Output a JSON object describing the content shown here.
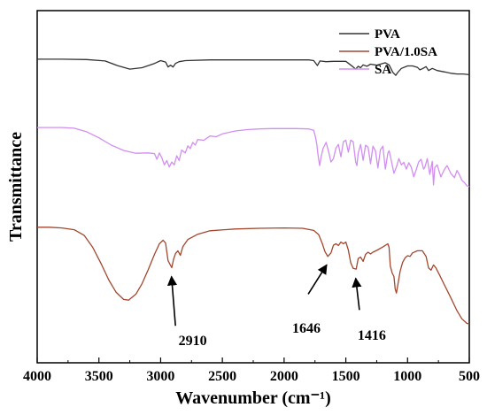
{
  "chart_data": {
    "type": "line",
    "title": "",
    "xlabel": "Wavenumber (cm⁻¹)",
    "ylabel": "Transmittance",
    "xlim": [
      4000,
      500
    ],
    "x_reversed": true,
    "xticks": [
      4000,
      3500,
      3000,
      2500,
      2000,
      1500,
      1000,
      500
    ],
    "ylim": [
      0,
      100
    ],
    "y_ticks_shown": false,
    "grid": false,
    "legend_position": "top-right",
    "series": [
      {
        "name": "PVA",
        "color": "#333333",
        "points": [
          [
            4000,
            86.2
          ],
          [
            3800,
            86.2
          ],
          [
            3600,
            86.1
          ],
          [
            3450,
            85.7
          ],
          [
            3350,
            84.4
          ],
          [
            3250,
            83.4
          ],
          [
            3150,
            83.8
          ],
          [
            3050,
            85.0
          ],
          [
            3000,
            85.8
          ],
          [
            2960,
            85.4
          ],
          [
            2940,
            84.0
          ],
          [
            2920,
            84.5
          ],
          [
            2900,
            84.0
          ],
          [
            2880,
            85.0
          ],
          [
            2850,
            85.5
          ],
          [
            2800,
            85.8
          ],
          [
            2600,
            86.0
          ],
          [
            2400,
            86.0
          ],
          [
            2200,
            86.0
          ],
          [
            2000,
            86.0
          ],
          [
            1800,
            86.0
          ],
          [
            1760,
            85.8
          ],
          [
            1730,
            84.4
          ],
          [
            1710,
            85.7
          ],
          [
            1660,
            85.5
          ],
          [
            1600,
            85.6
          ],
          [
            1500,
            85.6
          ],
          [
            1440,
            84.0
          ],
          [
            1420,
            83.4
          ],
          [
            1400,
            84.2
          ],
          [
            1380,
            83.8
          ],
          [
            1360,
            84.6
          ],
          [
            1330,
            84.2
          ],
          [
            1300,
            84.8
          ],
          [
            1250,
            84.5
          ],
          [
            1180,
            85.2
          ],
          [
            1150,
            84.6
          ],
          [
            1120,
            82.5
          ],
          [
            1095,
            81.6
          ],
          [
            1080,
            82.4
          ],
          [
            1050,
            83.6
          ],
          [
            1000,
            84.3
          ],
          [
            960,
            84.3
          ],
          [
            920,
            83.9
          ],
          [
            900,
            83.2
          ],
          [
            880,
            83.5
          ],
          [
            850,
            84.1
          ],
          [
            830,
            83.0
          ],
          [
            800,
            83.6
          ],
          [
            760,
            83.0
          ],
          [
            700,
            82.6
          ],
          [
            650,
            82.2
          ],
          [
            600,
            82.0
          ],
          [
            550,
            82.0
          ],
          [
            500,
            81.8
          ]
        ]
      },
      {
        "name": "PVA/1.0SA",
        "color": "#a3462e",
        "points": [
          [
            4000,
            38.5
          ],
          [
            3900,
            38.5
          ],
          [
            3800,
            38.3
          ],
          [
            3700,
            37.8
          ],
          [
            3620,
            36.2
          ],
          [
            3550,
            32.8
          ],
          [
            3480,
            28.0
          ],
          [
            3420,
            23.5
          ],
          [
            3360,
            20.0
          ],
          [
            3300,
            18.0
          ],
          [
            3260,
            17.8
          ],
          [
            3200,
            19.5
          ],
          [
            3150,
            22.5
          ],
          [
            3100,
            26.5
          ],
          [
            3050,
            30.8
          ],
          [
            3010,
            33.8
          ],
          [
            2980,
            34.8
          ],
          [
            2960,
            34.0
          ],
          [
            2940,
            29.0
          ],
          [
            2925,
            28.0
          ],
          [
            2910,
            27.0
          ],
          [
            2895,
            29.5
          ],
          [
            2880,
            31.0
          ],
          [
            2860,
            31.8
          ],
          [
            2840,
            30.5
          ],
          [
            2820,
            33.0
          ],
          [
            2780,
            35.0
          ],
          [
            2700,
            36.5
          ],
          [
            2600,
            37.5
          ],
          [
            2400,
            38.0
          ],
          [
            2200,
            38.2
          ],
          [
            2000,
            38.3
          ],
          [
            1850,
            38.2
          ],
          [
            1760,
            37.6
          ],
          [
            1720,
            36.4
          ],
          [
            1690,
            33.8
          ],
          [
            1670,
            31.6
          ],
          [
            1646,
            30.2
          ],
          [
            1620,
            31.2
          ],
          [
            1600,
            33.4
          ],
          [
            1580,
            33.8
          ],
          [
            1560,
            33.3
          ],
          [
            1540,
            34.3
          ],
          [
            1520,
            33.8
          ],
          [
            1500,
            34.3
          ],
          [
            1480,
            32.0
          ],
          [
            1460,
            28.4
          ],
          [
            1440,
            26.8
          ],
          [
            1416,
            26.6
          ],
          [
            1400,
            29.6
          ],
          [
            1380,
            30.0
          ],
          [
            1360,
            28.8
          ],
          [
            1340,
            30.8
          ],
          [
            1320,
            31.4
          ],
          [
            1300,
            30.9
          ],
          [
            1280,
            31.4
          ],
          [
            1250,
            31.9
          ],
          [
            1200,
            32.9
          ],
          [
            1160,
            33.8
          ],
          [
            1150,
            32.8
          ],
          [
            1140,
            27.5
          ],
          [
            1125,
            25.5
          ],
          [
            1110,
            24.5
          ],
          [
            1100,
            21.0
          ],
          [
            1090,
            19.8
          ],
          [
            1080,
            21.8
          ],
          [
            1060,
            26.0
          ],
          [
            1040,
            28.5
          ],
          [
            1020,
            29.8
          ],
          [
            1000,
            30.4
          ],
          [
            980,
            30.2
          ],
          [
            960,
            31.2
          ],
          [
            920,
            31.8
          ],
          [
            880,
            31.8
          ],
          [
            850,
            30.2
          ],
          [
            830,
            26.9
          ],
          [
            810,
            26.3
          ],
          [
            790,
            27.8
          ],
          [
            770,
            26.9
          ],
          [
            740,
            24.9
          ],
          [
            700,
            22.0
          ],
          [
            650,
            18.5
          ],
          [
            600,
            14.8
          ],
          [
            560,
            12.5
          ],
          [
            520,
            11.2
          ],
          [
            500,
            11.0
          ]
        ]
      },
      {
        "name": "SA",
        "color": "#d28ef0",
        "points": [
          [
            4000,
            66.8
          ],
          [
            3800,
            66.8
          ],
          [
            3700,
            66.6
          ],
          [
            3600,
            65.6
          ],
          [
            3500,
            63.9
          ],
          [
            3400,
            61.8
          ],
          [
            3300,
            60.3
          ],
          [
            3200,
            59.5
          ],
          [
            3100,
            59.6
          ],
          [
            3050,
            59.4
          ],
          [
            3030,
            57.8
          ],
          [
            3010,
            59.6
          ],
          [
            2990,
            58.2
          ],
          [
            2970,
            56.2
          ],
          [
            2950,
            57.4
          ],
          [
            2930,
            55.6
          ],
          [
            2910,
            57.0
          ],
          [
            2890,
            56.2
          ],
          [
            2870,
            58.8
          ],
          [
            2850,
            57.4
          ],
          [
            2830,
            60.4
          ],
          [
            2800,
            59.6
          ],
          [
            2780,
            61.6
          ],
          [
            2760,
            60.8
          ],
          [
            2740,
            62.6
          ],
          [
            2720,
            61.8
          ],
          [
            2700,
            63.4
          ],
          [
            2650,
            63.2
          ],
          [
            2600,
            64.4
          ],
          [
            2550,
            64.2
          ],
          [
            2500,
            65.0
          ],
          [
            2400,
            65.8
          ],
          [
            2300,
            66.2
          ],
          [
            2200,
            66.4
          ],
          [
            2100,
            66.5
          ],
          [
            2000,
            66.5
          ],
          [
            1900,
            66.5
          ],
          [
            1800,
            66.4
          ],
          [
            1760,
            66.0
          ],
          [
            1745,
            64.0
          ],
          [
            1735,
            62.0
          ],
          [
            1725,
            59.0
          ],
          [
            1712,
            56.0
          ],
          [
            1700,
            58.5
          ],
          [
            1685,
            60.8
          ],
          [
            1660,
            62.6
          ],
          [
            1640,
            60.0
          ],
          [
            1620,
            57.0
          ],
          [
            1600,
            58.0
          ],
          [
            1580,
            61.0
          ],
          [
            1560,
            62.0
          ],
          [
            1540,
            58.5
          ],
          [
            1520,
            62.8
          ],
          [
            1500,
            63.2
          ],
          [
            1480,
            59.8
          ],
          [
            1460,
            63.2
          ],
          [
            1440,
            62.8
          ],
          [
            1420,
            57.0
          ],
          [
            1410,
            56.0
          ],
          [
            1400,
            59.5
          ],
          [
            1380,
            62.0
          ],
          [
            1360,
            57.5
          ],
          [
            1340,
            61.8
          ],
          [
            1320,
            61.2
          ],
          [
            1300,
            56.5
          ],
          [
            1280,
            61.5
          ],
          [
            1260,
            60.2
          ],
          [
            1240,
            55.3
          ],
          [
            1220,
            60.5
          ],
          [
            1200,
            61.5
          ],
          [
            1180,
            55.0
          ],
          [
            1160,
            59.5
          ],
          [
            1150,
            60.2
          ],
          [
            1140,
            58.8
          ],
          [
            1125,
            56.2
          ],
          [
            1110,
            53.8
          ],
          [
            1090,
            55.6
          ],
          [
            1070,
            58.0
          ],
          [
            1050,
            56.2
          ],
          [
            1030,
            56.9
          ],
          [
            1010,
            55.0
          ],
          [
            990,
            56.8
          ],
          [
            970,
            55.5
          ],
          [
            950,
            52.8
          ],
          [
            930,
            54.8
          ],
          [
            910,
            57.0
          ],
          [
            890,
            57.8
          ],
          [
            870,
            55.0
          ],
          [
            860,
            55.5
          ],
          [
            840,
            58.0
          ],
          [
            820,
            53.5
          ],
          [
            800,
            57.2
          ],
          [
            790,
            50.5
          ],
          [
            780,
            55.4
          ],
          [
            760,
            56.2
          ],
          [
            730,
            52.8
          ],
          [
            700,
            55.0
          ],
          [
            680,
            56.0
          ],
          [
            650,
            53.8
          ],
          [
            620,
            52.6
          ],
          [
            600,
            54.6
          ],
          [
            580,
            53.4
          ],
          [
            560,
            51.8
          ],
          [
            540,
            51.2
          ],
          [
            520,
            50.3
          ],
          [
            500,
            50.0
          ]
        ]
      }
    ],
    "annotations": [
      {
        "label": "2910",
        "x": 2910,
        "series": "PVA/1.0SA",
        "arrow_from": [
          2880,
          10.5
        ],
        "arrow_to": [
          2912,
          24.5
        ],
        "text_at": [
          2740,
          5.0
        ]
      },
      {
        "label": "1646",
        "x": 1646,
        "series": "PVA/1.0SA",
        "arrow_from": [
          1805,
          19.5
        ],
        "arrow_to": [
          1655,
          27.8
        ],
        "text_at": [
          1820,
          8.5
        ]
      },
      {
        "label": "1416",
        "x": 1416,
        "series": "PVA/1.0SA",
        "arrow_from": [
          1390,
          15.0
        ],
        "arrow_to": [
          1420,
          24.0
        ],
        "text_at": [
          1290,
          6.5
        ]
      }
    ]
  }
}
